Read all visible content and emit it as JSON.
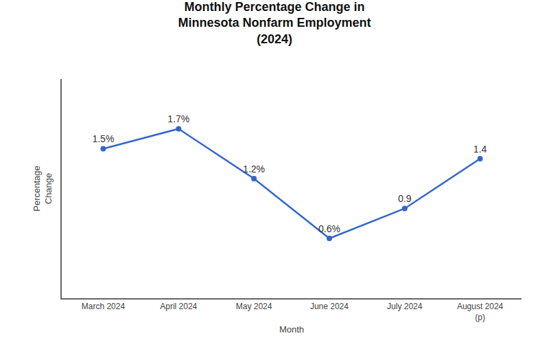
{
  "chart_data": {
    "type": "line",
    "title": "Monthly Percentage Change in\nMinnesota Nonfarm Employment\n(2024)",
    "x_label": "Month",
    "y_label": "Percentage\nChange",
    "categories": [
      "March 2024",
      "April 2024",
      "May 2024",
      "June 2024",
      "July 2024",
      "August 2024\n(p)"
    ],
    "values": [
      1.5,
      1.7,
      1.2,
      0.6,
      0.9,
      1.4
    ],
    "value_labels": [
      "1.5%",
      "1.7%",
      "1.2%",
      "0.6%",
      "0.9",
      "1.4"
    ],
    "data_labels": true,
    "color": "#3366cc",
    "marker": "circle",
    "ylim": [
      0.0,
      2.2
    ],
    "yticks": [],
    "tick_labels": "x",
    "grid": false
  }
}
